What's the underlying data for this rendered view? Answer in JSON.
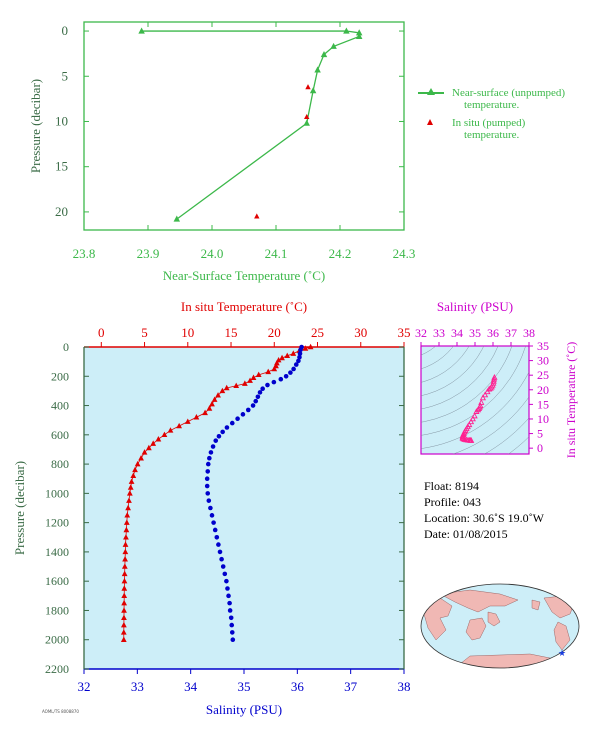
{
  "chart_data": [
    {
      "type": "line",
      "xlabel": "Near-Surface Temperature (˚C)",
      "ylabel": "Pressure (decibar)",
      "xlim": [
        23.8,
        24.3
      ],
      "ylim": [
        22,
        -1
      ],
      "xticks": [
        "23.8",
        "23.9",
        "24.0",
        "24.1",
        "24.2",
        "24.3"
      ],
      "yticks": [
        "0",
        "5",
        "10",
        "15",
        "20"
      ],
      "series": [
        {
          "name": "Near-surface (unpumped) temperature.",
          "points": [
            [
              23.89,
              0.0
            ],
            [
              24.21,
              0.0
            ],
            [
              24.23,
              0.2
            ],
            [
              24.23,
              0.6
            ],
            [
              24.19,
              1.7
            ],
            [
              24.175,
              2.6
            ],
            [
              24.165,
              4.3
            ],
            [
              24.158,
              6.6
            ],
            [
              24.148,
              10.2
            ],
            [
              23.945,
              20.8
            ]
          ]
        },
        {
          "name": "In situ (pumped) temperature.",
          "points": [
            [
              24.15,
              6.2
            ],
            [
              24.148,
              9.5
            ],
            [
              24.07,
              20.5
            ]
          ]
        }
      ],
      "colors": {
        "near_surface": "#3cb84a",
        "in_situ": "#e00000",
        "axis": "#3cb84a"
      },
      "legend_position": "right",
      "legend": {
        "near_surface_line1": "Near-surface (unpumped)",
        "near_surface_line2": "temperature.",
        "in_situ_line1": "In situ (pumped)",
        "in_situ_line2": "temperature."
      }
    },
    {
      "type": "line",
      "ylabel": "Pressure (decibar)",
      "ylim": [
        2200,
        0
      ],
      "yticks": [
        "0",
        "200",
        "400",
        "600",
        "800",
        "1000",
        "1200",
        "1400",
        "1600",
        "1800",
        "2000",
        "2200"
      ],
      "top_axis": {
        "label": "In situ Temperature (˚C)",
        "lim": [
          -2,
          35
        ],
        "ticks": [
          "0",
          "5",
          "10",
          "15",
          "20",
          "25",
          "30",
          "35"
        ],
        "color": "#e00000"
      },
      "bottom_axis": {
        "label": "Salinity (PSU)",
        "lim": [
          32,
          38
        ],
        "ticks": [
          "32",
          "33",
          "34",
          "35",
          "36",
          "37",
          "38"
        ],
        "color": "#0000cc"
      },
      "series": [
        {
          "name": "In situ Temperature",
          "axis": "top",
          "points": [
            [
              24.2,
              0
            ],
            [
              23.6,
              10
            ],
            [
              22.9,
              25
            ],
            [
              22.2,
              45
            ],
            [
              21.5,
              60
            ],
            [
              20.9,
              75
            ],
            [
              20.5,
              90
            ],
            [
              20.3,
              110
            ],
            [
              20.2,
              130
            ],
            [
              20.0,
              150
            ],
            [
              19.3,
              170
            ],
            [
              18.2,
              190
            ],
            [
              17.6,
              210
            ],
            [
              17.2,
              230
            ],
            [
              16.6,
              250
            ],
            [
              15.6,
              265
            ],
            [
              14.5,
              280
            ],
            [
              14.0,
              300
            ],
            [
              13.5,
              330
            ],
            [
              13.1,
              360
            ],
            [
              12.8,
              390
            ],
            [
              12.5,
              420
            ],
            [
              12.0,
              450
            ],
            [
              11.0,
              480
            ],
            [
              10.0,
              510
            ],
            [
              9.0,
              540
            ],
            [
              8.0,
              570
            ],
            [
              7.3,
              600
            ],
            [
              6.6,
              630
            ],
            [
              6.0,
              660
            ],
            [
              5.5,
              690
            ],
            [
              5.0,
              720
            ],
            [
              4.6,
              760
            ],
            [
              4.2,
              800
            ],
            [
              3.9,
              840
            ],
            [
              3.7,
              880
            ],
            [
              3.5,
              920
            ],
            [
              3.4,
              960
            ],
            [
              3.3,
              1000
            ],
            [
              3.2,
              1050
            ],
            [
              3.1,
              1100
            ],
            [
              3.0,
              1150
            ],
            [
              2.95,
              1200
            ],
            [
              2.9,
              1250
            ],
            [
              2.85,
              1300
            ],
            [
              2.8,
              1350
            ],
            [
              2.78,
              1400
            ],
            [
              2.75,
              1450
            ],
            [
              2.72,
              1500
            ],
            [
              2.7,
              1550
            ],
            [
              2.68,
              1600
            ],
            [
              2.66,
              1650
            ],
            [
              2.65,
              1700
            ],
            [
              2.64,
              1750
            ],
            [
              2.63,
              1800
            ],
            [
              2.62,
              1850
            ],
            [
              2.61,
              1900
            ],
            [
              2.6,
              1950
            ],
            [
              2.6,
              2000
            ]
          ]
        },
        {
          "name": "Salinity",
          "axis": "bottom",
          "points": [
            [
              36.08,
              0
            ],
            [
              36.06,
              20
            ],
            [
              36.05,
              45
            ],
            [
              36.04,
              70
            ],
            [
              36.02,
              95
            ],
            [
              35.98,
              120
            ],
            [
              35.93,
              150
            ],
            [
              35.87,
              175
            ],
            [
              35.79,
              200
            ],
            [
              35.69,
              220
            ],
            [
              35.56,
              240
            ],
            [
              35.44,
              260
            ],
            [
              35.35,
              285
            ],
            [
              35.3,
              310
            ],
            [
              35.26,
              340
            ],
            [
              35.22,
              370
            ],
            [
              35.17,
              400
            ],
            [
              35.08,
              430
            ],
            [
              34.98,
              460
            ],
            [
              34.88,
              490
            ],
            [
              34.78,
              520
            ],
            [
              34.68,
              550
            ],
            [
              34.6,
              580
            ],
            [
              34.53,
              610
            ],
            [
              34.47,
              640
            ],
            [
              34.42,
              680
            ],
            [
              34.38,
              720
            ],
            [
              34.35,
              760
            ],
            [
              34.33,
              800
            ],
            [
              34.32,
              850
            ],
            [
              34.31,
              900
            ],
            [
              34.31,
              950
            ],
            [
              34.32,
              1000
            ],
            [
              34.34,
              1050
            ],
            [
              34.37,
              1100
            ],
            [
              34.4,
              1150
            ],
            [
              34.43,
              1200
            ],
            [
              34.46,
              1250
            ],
            [
              34.49,
              1300
            ],
            [
              34.52,
              1350
            ],
            [
              34.55,
              1400
            ],
            [
              34.58,
              1450
            ],
            [
              34.61,
              1500
            ],
            [
              34.64,
              1550
            ],
            [
              34.67,
              1600
            ],
            [
              34.69,
              1650
            ],
            [
              34.71,
              1700
            ],
            [
              34.73,
              1750
            ],
            [
              34.74,
              1800
            ],
            [
              34.76,
              1850
            ],
            [
              34.77,
              1900
            ],
            [
              34.78,
              1950
            ],
            [
              34.79,
              2000
            ]
          ]
        }
      ],
      "colors": {
        "temperature": "#e00000",
        "salinity": "#0000cc",
        "background": "#cdeef8",
        "pressure_axis": "#3a6b46"
      }
    },
    {
      "type": "scatter",
      "top_axis": {
        "label": "Salinity (PSU)",
        "lim": [
          32,
          38
        ],
        "ticks": [
          "32",
          "33",
          "34",
          "35",
          "36",
          "37",
          "38"
        ],
        "color": "#cc00cc"
      },
      "right_axis": {
        "label": "In situ Temperature (˚C)",
        "lim": [
          -2,
          35
        ],
        "ticks": [
          "0",
          "5",
          "10",
          "15",
          "20",
          "25",
          "30",
          "35"
        ],
        "color": "#cc00cc"
      },
      "points": [
        [
          36.08,
          24.2
        ],
        [
          36.06,
          23.6
        ],
        [
          36.04,
          22.9
        ],
        [
          36.02,
          22.2
        ],
        [
          35.98,
          21.5
        ],
        [
          35.93,
          20.9
        ],
        [
          35.87,
          20.5
        ],
        [
          35.79,
          20.2
        ],
        [
          35.69,
          19.3
        ],
        [
          35.56,
          18.2
        ],
        [
          35.44,
          17.2
        ],
        [
          35.35,
          15.6
        ],
        [
          35.3,
          14.5
        ],
        [
          35.26,
          14.0
        ],
        [
          35.22,
          13.5
        ],
        [
          35.17,
          13.1
        ],
        [
          35.08,
          12.5
        ],
        [
          34.98,
          11.0
        ],
        [
          34.88,
          10.0
        ],
        [
          34.78,
          9.0
        ],
        [
          34.68,
          8.0
        ],
        [
          34.6,
          7.3
        ],
        [
          34.53,
          6.6
        ],
        [
          34.47,
          6.0
        ],
        [
          34.42,
          5.5
        ],
        [
          34.38,
          5.0
        ],
        [
          34.35,
          4.6
        ],
        [
          34.33,
          4.2
        ],
        [
          34.32,
          3.9
        ],
        [
          34.31,
          3.5
        ],
        [
          34.32,
          3.3
        ],
        [
          34.37,
          3.1
        ],
        [
          34.43,
          2.95
        ],
        [
          34.52,
          2.8
        ],
        [
          34.61,
          2.72
        ],
        [
          34.69,
          2.66
        ],
        [
          34.74,
          2.63
        ],
        [
          34.79,
          2.6
        ]
      ],
      "colors": {
        "points": "#ff2090",
        "background": "#cdeef8",
        "isopycnals": "#7a8a99"
      }
    }
  ],
  "info": {
    "float": "Float:  8194",
    "profile": "Profile:  043",
    "location": "Location:  30.6˚S  19.0˚W",
    "date": "Date:  01/08/2015"
  },
  "footer_code": "AOML/TS 8008870",
  "map": {
    "colors": {
      "ocean": "#cdeef8",
      "land": "#f0b8b4",
      "marker": "#1a3cdd"
    },
    "marker": "float-location-star"
  }
}
